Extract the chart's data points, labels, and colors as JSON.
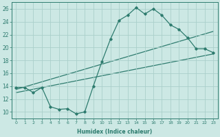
{
  "xlabel": "Humidex (Indice chaleur)",
  "xlim": [
    -0.5,
    23.5
  ],
  "ylim": [
    9,
    27
  ],
  "yticks": [
    10,
    12,
    14,
    16,
    18,
    20,
    22,
    24,
    26
  ],
  "xticks": [
    0,
    1,
    2,
    3,
    4,
    5,
    6,
    7,
    8,
    9,
    10,
    11,
    12,
    13,
    14,
    15,
    16,
    17,
    18,
    19,
    20,
    21,
    22,
    23
  ],
  "bg_color": "#cce8e4",
  "grid_color": "#aacfca",
  "line_color": "#2d7b6e",
  "curve1_x": [
    0,
    1,
    2,
    3,
    4,
    5,
    6,
    7,
    8,
    9,
    10,
    11,
    12,
    13,
    14,
    15,
    16,
    17,
    18,
    19,
    20,
    21,
    22,
    23
  ],
  "curve1_y": [
    13.8,
    13.8,
    13.0,
    13.8,
    10.8,
    10.4,
    10.5,
    9.7,
    10.0,
    14.0,
    17.8,
    21.3,
    24.2,
    25.0,
    26.2,
    25.2,
    26.0,
    25.0,
    23.5,
    22.8,
    21.5,
    19.8,
    19.8,
    19.2
  ],
  "curve2_x": [
    0,
    23
  ],
  "curve2_y": [
    13.5,
    22.5
  ],
  "curve3_x": [
    0,
    23
  ],
  "curve3_y": [
    13.0,
    19.0
  ]
}
